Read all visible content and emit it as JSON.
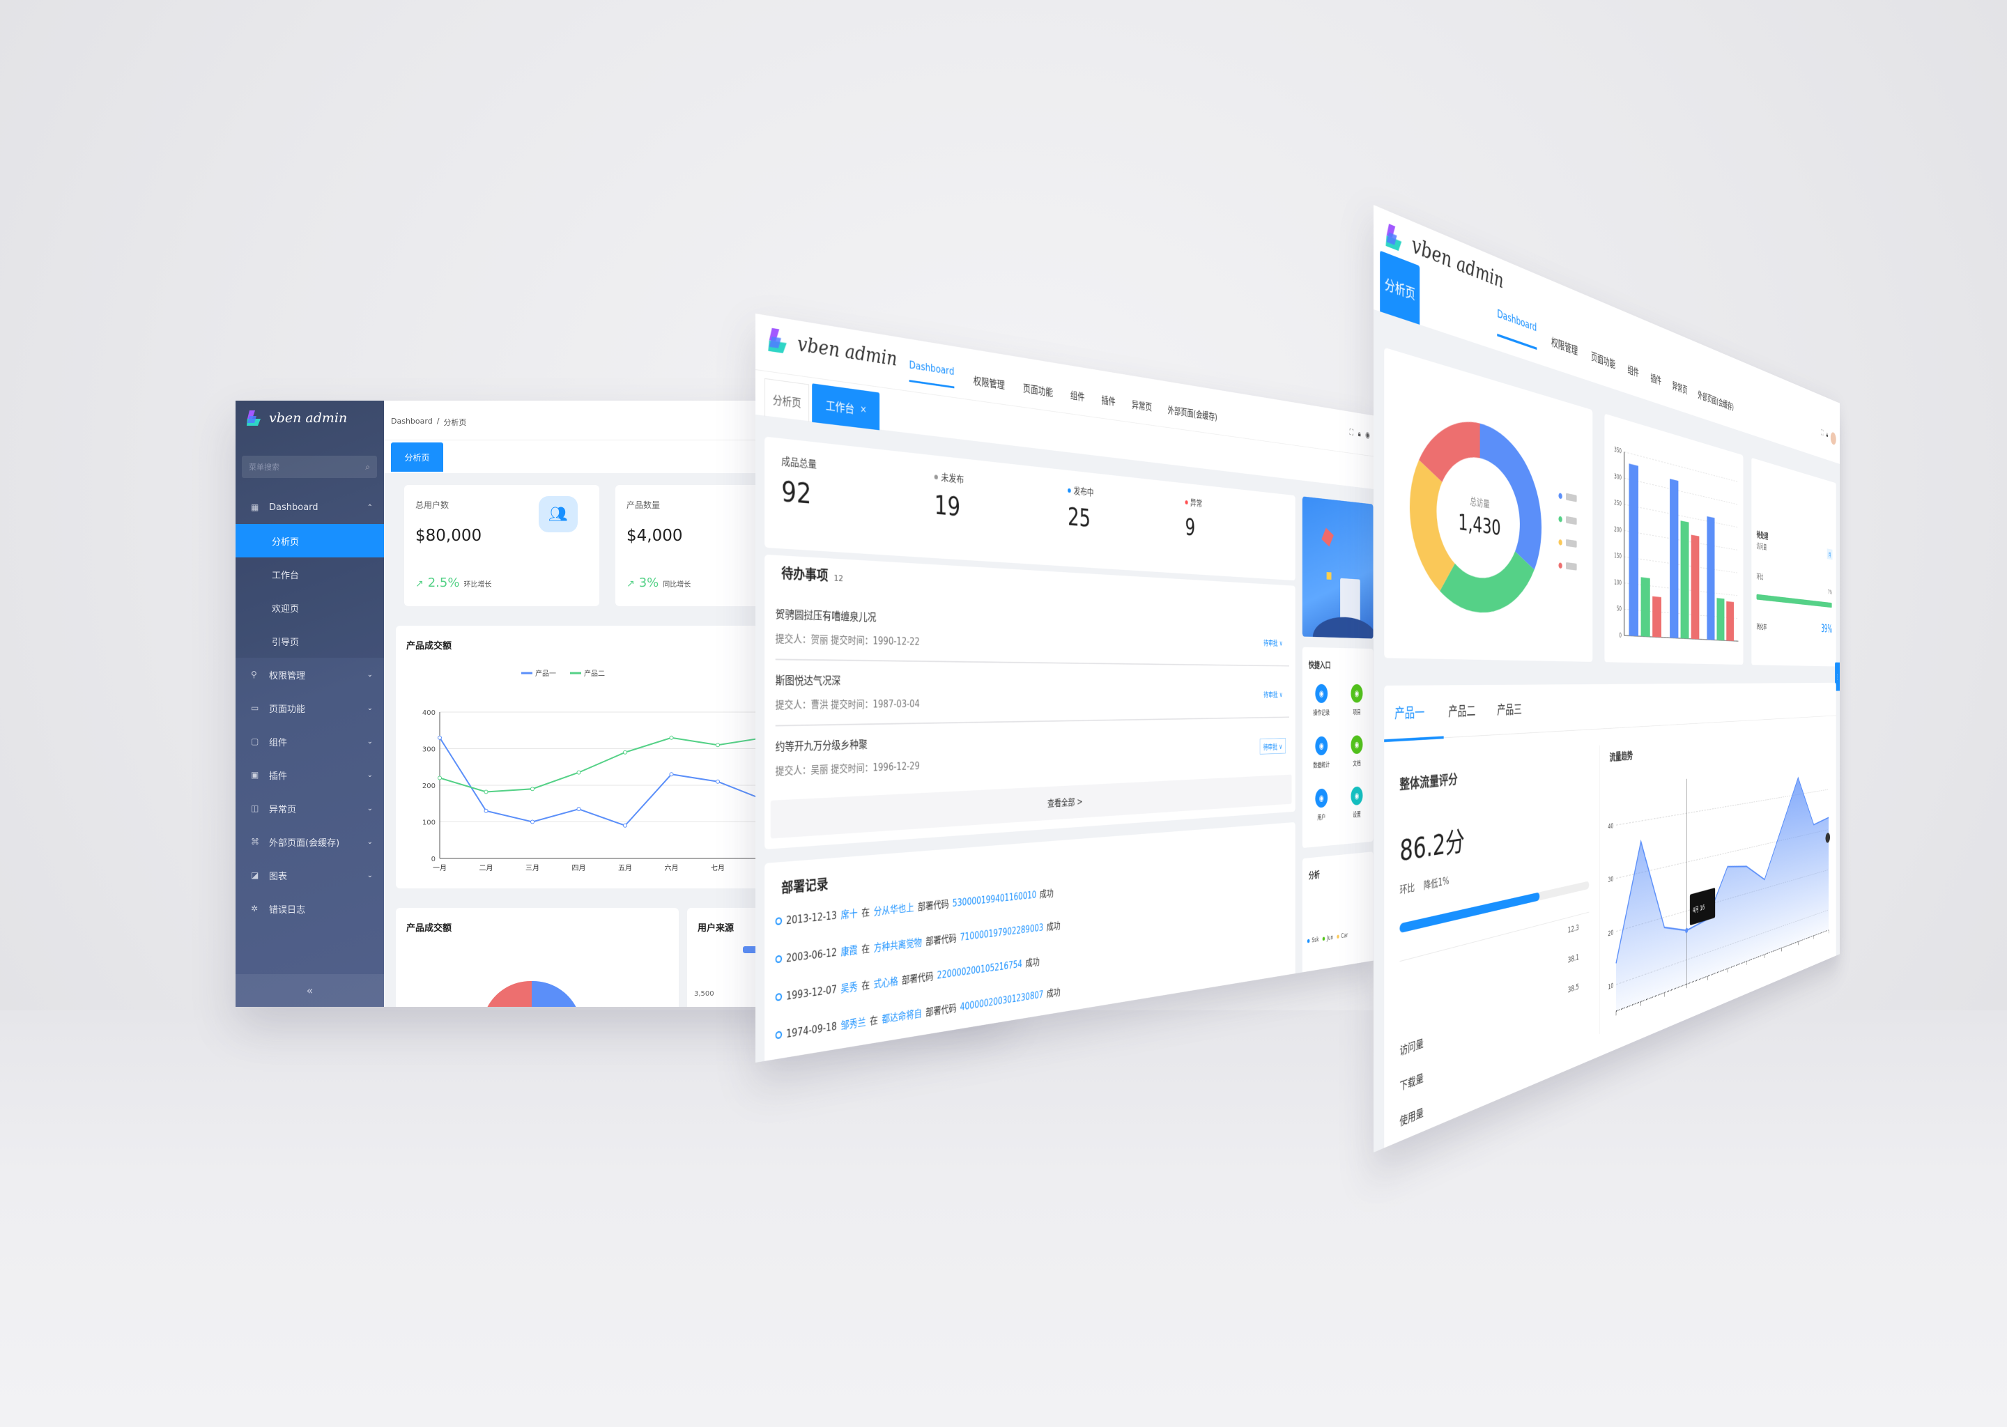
{
  "brand": {
    "name": "vben admin"
  },
  "left": {
    "search_placeholder": "菜单搜索",
    "breadcrumb": [
      "Dashboard",
      "/",
      "分析页"
    ],
    "tab": "分析页",
    "menu": {
      "dashboard": "Dashboard",
      "sub": [
        "分析页",
        "工作台",
        "欢迎页",
        "引导页"
      ],
      "items": [
        {
          "label": "权限管理",
          "icon": "key-icon"
        },
        {
          "label": "页面功能",
          "icon": "page-icon"
        },
        {
          "label": "组件",
          "icon": "component-icon"
        },
        {
          "label": "插件",
          "icon": "plugin-icon"
        },
        {
          "label": "异常页",
          "icon": "error-page-icon"
        },
        {
          "label": "外部页面(会缓存)",
          "icon": "link-icon"
        },
        {
          "label": "图表",
          "icon": "chart-icon"
        },
        {
          "label": "错误日志",
          "icon": "bug-icon"
        }
      ],
      "collapse": "«"
    },
    "cards": [
      {
        "title": "总用户数",
        "value": "$80,000",
        "trend": "2.5%",
        "trend_label": "环比增长"
      },
      {
        "title": "产品数量",
        "value": "$4,000",
        "trend": "3%",
        "trend_label": "同比增长"
      }
    ],
    "line_title": "产品成交额",
    "bottom_titles": [
      "产品成交额",
      "用户来源"
    ],
    "bottom_tick": "3,500"
  },
  "middle": {
    "nav": [
      "Dashboard",
      "权限管理",
      "页面功能",
      "组件",
      "插件",
      "异常页",
      "外部页面(会缓存)"
    ],
    "tabs": [
      "分析页",
      "工作台"
    ],
    "tab_close": "×",
    "stats": [
      {
        "label": "成品总量",
        "value": "92",
        "color": ""
      },
      {
        "label": "未发布",
        "value": "19",
        "color": "#999999"
      },
      {
        "label": "发布中",
        "value": "25",
        "color": "#1890ff"
      },
      {
        "label": "异常",
        "value": "9",
        "color": "#ff4d4f"
      }
    ],
    "todo": {
      "title": "待办事项",
      "count": "12",
      "items": [
        {
          "title": "贺骋圆挝压有嘈缠泉儿况",
          "meta": "提交人：贺丽  提交时间：1990-12-22",
          "action": "待审批 ∨"
        },
        {
          "title": "斯图悦达气况深",
          "meta": "提交人：曹洪  提交时间：1987-03-04",
          "action": "待审批 ∨"
        },
        {
          "title": "约等开九万分级乡种聚",
          "meta": "提交人：吴丽  提交时间：1996-12-29",
          "action": "待审批 ∨"
        }
      ],
      "view_all": "查看全部 >"
    },
    "deploy": {
      "title": "部署记录",
      "items": [
        {
          "date": "2013-12-13",
          "user": "席十",
          "at": "在",
          "project": "分从华也上",
          "verb": "部署代码",
          "code": "530000199401160010",
          "result": "成功"
        },
        {
          "date": "2003-06-12",
          "user": "康霞",
          "at": "在",
          "project": "方种共离觉物",
          "verb": "部署代码",
          "code": "710000197902289003",
          "result": "成功"
        },
        {
          "date": "1993-12-07",
          "user": "吴秀",
          "at": "在",
          "project": "式心格",
          "verb": "部署代码",
          "code": "220000200105216754",
          "result": "成功"
        },
        {
          "date": "1974-09-18",
          "user": "邹秀兰",
          "at": "在",
          "project": "都达命将自",
          "verb": "部署代码",
          "code": "400000200301230807",
          "result": "成功"
        }
      ]
    },
    "quick": {
      "title": "快捷入口",
      "items": [
        {
          "label": "操作记录",
          "color": "#1890ff"
        },
        {
          "label": "项目",
          "color": "#52c41a"
        },
        {
          "label": "数据统计",
          "color": "#1890ff"
        },
        {
          "label": "文档",
          "color": "#52c41a"
        },
        {
          "label": "用户",
          "color": "#1890ff"
        },
        {
          "label": "设置",
          "color": "#13c2c2"
        }
      ]
    },
    "analysis": {
      "title": "分析",
      "legend": [
        {
          "label": "Ssk",
          "color": "#1890ff"
        },
        {
          "label": "Jun",
          "color": "#52c41a"
        },
        {
          "label": "Car",
          "color": "#fac858"
        }
      ]
    }
  },
  "right": {
    "tab": "分析页",
    "nav": [
      "Dashboard",
      "权限管理",
      "页面功能",
      "组件",
      "插件",
      "异常页",
      "外部页面(会缓存)"
    ],
    "donut_label": "总访量",
    "donut_total": "1,430",
    "small_card": {
      "title": "待处理",
      "sub": "访问量",
      "tag": "月",
      "rate_label": "环比",
      "rate": "7%",
      "foot_label": "转化率",
      "foot_value": "39%"
    },
    "tabs": [
      "产品一",
      "产品二",
      "产品三"
    ],
    "score": {
      "title": "整体流量评分",
      "value": "86.2分",
      "sub_label": "环比",
      "sub_value": "降低1%",
      "progress": 0.7,
      "list": [
        {
          "label": "",
          "value": "12.3"
        },
        {
          "label": "",
          "value": "38.1"
        },
        {
          "label": "访问量",
          "value": "38.5"
        },
        {
          "label": "下载量",
          "value": ""
        },
        {
          "label": "使用量",
          "value": ""
        }
      ]
    },
    "trend_title": "流量趋势",
    "tooltip": "4月 16"
  },
  "colors": {
    "primary": "#1890ff",
    "sidebar": "#48577c",
    "green": "#55d187",
    "red": "#ed6f6f",
    "yellow": "#fac858",
    "blue": "#5b8ff9"
  },
  "chart_data": [
    {
      "type": "line",
      "title": "产品成交额",
      "categories": [
        "一月",
        "二月",
        "三月",
        "四月",
        "五月",
        "六月",
        "七月",
        "八月"
      ],
      "series": [
        {
          "name": "产品一",
          "color": "#5b8ff9",
          "values": [
            330,
            130,
            100,
            135,
            90,
            230,
            210,
            160
          ]
        },
        {
          "name": "产品二",
          "color": "#55d187",
          "values": [
            220,
            182,
            190,
            235,
            290,
            330,
            310,
            330
          ]
        }
      ],
      "ylim": [
        0,
        400
      ],
      "yticks": [
        0,
        100,
        200,
        300,
        400
      ],
      "grid": true,
      "legend": "top"
    },
    {
      "type": "pie",
      "total": "1,430",
      "slices": [
        {
          "label": "",
          "value": 33,
          "color": "#5b8ff9"
        },
        {
          "label": "",
          "value": 27,
          "color": "#55d187"
        },
        {
          "label": "",
          "value": 23,
          "color": "#fac858"
        },
        {
          "label": "",
          "value": 17,
          "color": "#ed6f6f"
        }
      ]
    },
    {
      "type": "bar",
      "categories": [
        "",
        "",
        ""
      ],
      "series": [
        {
          "color": "#5b8ff9",
          "values": [
            330,
            320,
            260
          ]
        },
        {
          "color": "#55d187",
          "values": [
            115,
            240,
            90
          ]
        },
        {
          "color": "#ed6f6f",
          "values": [
            80,
            215,
            85
          ]
        }
      ],
      "ylim": [
        0,
        350
      ],
      "grid": true
    },
    {
      "type": "area",
      "title": "流量趋势",
      "values": [
        14,
        36,
        18,
        16,
        17,
        27,
        26,
        22,
        33,
        44,
        32,
        33
      ],
      "yticks": [
        10,
        20,
        30,
        40
      ],
      "ylim": [
        5,
        45
      ],
      "grid": true
    }
  ]
}
